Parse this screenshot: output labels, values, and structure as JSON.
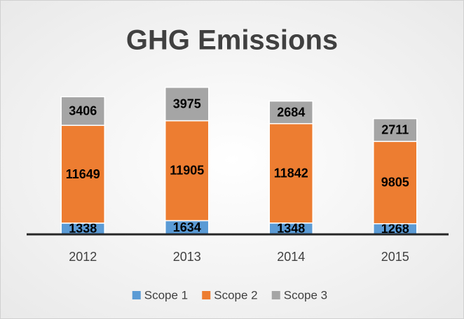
{
  "chart_data": {
    "type": "stacked_bar",
    "title": "GHG Emissions",
    "categories": [
      "2012",
      "2013",
      "2014",
      "2015"
    ],
    "series": [
      {
        "name": "Scope 1",
        "color": "#5b9bd5",
        "values": [
          1338,
          1634,
          1348,
          1268
        ]
      },
      {
        "name": "Scope 2",
        "color": "#ed7d31",
        "values": [
          11649,
          11905,
          11842,
          9805
        ]
      },
      {
        "name": "Scope 3",
        "color": "#a5a5a5",
        "values": [
          3406,
          3975,
          2684,
          2711
        ]
      }
    ],
    "ylim": [
      0,
      20000
    ],
    "legend": "bottom"
  }
}
